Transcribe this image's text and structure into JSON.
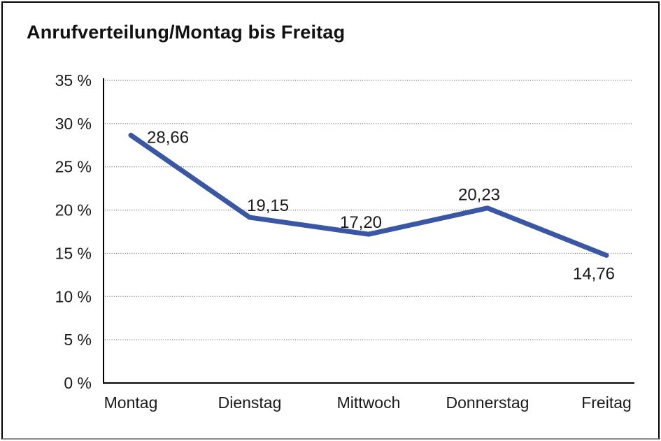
{
  "chart_data": {
    "type": "line",
    "title": "Anrufverteilung/Montag bis Freitag",
    "categories": [
      "Montag",
      "Dienstag",
      "Mittwoch",
      "Donnerstag",
      "Freitag"
    ],
    "series": [
      {
        "name": "Anrufverteilung",
        "values": [
          28.66,
          19.15,
          17.2,
          20.23,
          14.76
        ]
      }
    ],
    "value_labels": [
      "28,66",
      "19,15",
      "17,20",
      "20,23",
      "14,76"
    ],
    "xlabel": "",
    "ylabel": "",
    "ylim": [
      0,
      35
    ],
    "ytick_values": [
      0,
      5,
      10,
      15,
      20,
      25,
      30,
      35
    ],
    "ytick_labels": [
      "0 %",
      "5 %",
      "10 %",
      "15 %",
      "20 %",
      "25 %",
      "30 %",
      "35 %"
    ],
    "grid": "horizontal-dotted",
    "legend": "none",
    "line_color": "#3A57A5"
  }
}
